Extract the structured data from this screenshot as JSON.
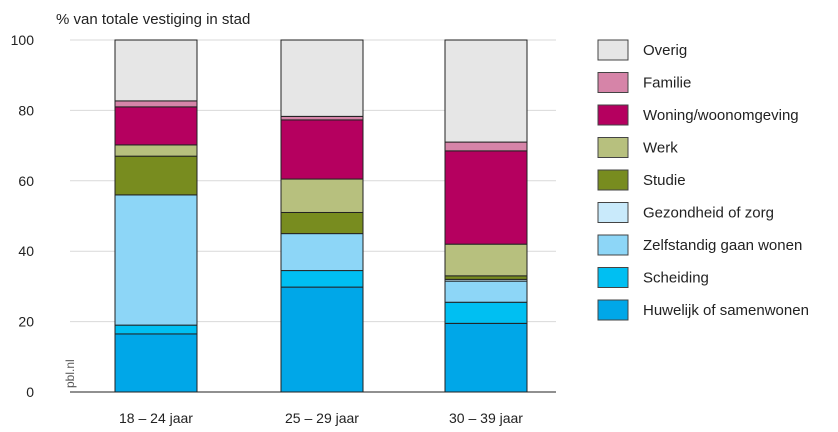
{
  "chart_data": {
    "type": "bar",
    "stacked": true,
    "ylabel": "% van totale vestiging in stad",
    "ylim": [
      0,
      100
    ],
    "yticks": [
      "0",
      "20",
      "40",
      "60",
      "80",
      "100"
    ],
    "categories": [
      "18 – 24 jaar",
      "25 – 29 jaar",
      "30 – 39 jaar"
    ],
    "series": [
      {
        "name": "Huwelijk of samenwonen",
        "color": "#00a7e8",
        "values": [
          16.5,
          29.8,
          19.5
        ]
      },
      {
        "name": "Scheiding",
        "color": "#00bff2",
        "values": [
          2.5,
          4.7,
          6.0
        ]
      },
      {
        "name": "Zelfstandig gaan wonen",
        "color": "#8dd6f7",
        "values": [
          37.0,
          10.5,
          6.0
        ]
      },
      {
        "name": "Gezondheid of zorg",
        "color": "#c9eafb",
        "values": [
          0.0,
          0.0,
          0.5
        ]
      },
      {
        "name": "Studie",
        "color": "#788c1f",
        "values": [
          11.0,
          6.0,
          1.0
        ]
      },
      {
        "name": "Werk",
        "color": "#b7c07e",
        "values": [
          3.2,
          9.5,
          9.0
        ]
      },
      {
        "name": "Woning/woonomgeving",
        "color": "#b5005f",
        "values": [
          10.8,
          16.8,
          26.5
        ]
      },
      {
        "name": "Familie",
        "color": "#d684a8",
        "values": [
          1.7,
          1.0,
          2.5
        ]
      },
      {
        "name": "Overig",
        "color": "#e6e6e6",
        "values": [
          17.3,
          21.7,
          29.0
        ]
      }
    ],
    "legend_position": "right",
    "grid": true
  },
  "watermark": "pbl.nl"
}
